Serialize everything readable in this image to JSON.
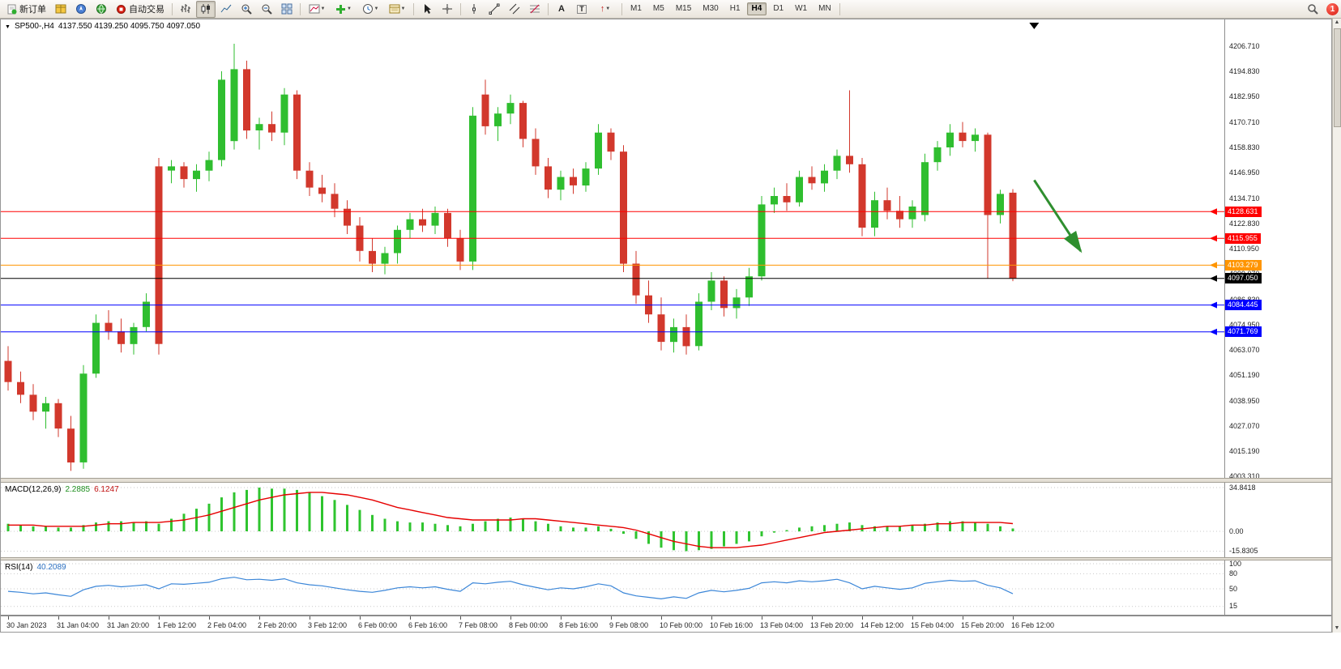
{
  "toolbar": {
    "new_order_label": "新订单",
    "autotrading_label": "自动交易",
    "timeframes": [
      "M1",
      "M5",
      "M15",
      "M30",
      "H1",
      "H4",
      "D1",
      "W1",
      "MN"
    ],
    "active_timeframe": "H4",
    "notification_badge": "1"
  },
  "icons": {
    "dropdown_caret": "▼",
    "collapse_marker": "▼",
    "scroll_up": "▲",
    "scroll_down": "▼",
    "text_tool": "A",
    "label_tool": "T",
    "shapes_tool": "↑"
  },
  "chart": {
    "title_symbol": "SP500-,H4",
    "title_ohlc": "4137.550 4139.250 4095.750 4097.050"
  },
  "chart_data": {
    "type": "candlestick",
    "symbol": "SP500-",
    "timeframe": "H4",
    "title_values": {
      "open": "4137.550",
      "high": "4139.250",
      "low": "4095.750",
      "close": "4097.050"
    },
    "colors": {
      "up": "#2fbe2f",
      "down": "#d2382c",
      "macd_histogram": "#2fc42f",
      "macd_signal": "#e60000",
      "rsi_line": "#3b86d8",
      "arrow": "#2f8f2f"
    },
    "price_axis": {
      "top": 4219.5,
      "bottom": 4002.7,
      "labels": [
        "4206.710",
        "4194.830",
        "4182.950",
        "4170.710",
        "4158.830",
        "4146.950",
        "4134.710",
        "4122.830",
        "4110.950",
        "4099.070",
        "4086.830",
        "4074.950",
        "4063.070",
        "4051.190",
        "4038.950",
        "4027.070",
        "4015.190",
        "4003.310"
      ]
    },
    "time_labels": [
      "30 Jan 2023",
      "31 Jan 04:00",
      "31 Jan 20:00",
      "1 Feb 12:00",
      "2 Feb 04:00",
      "2 Feb 20:00",
      "3 Feb 12:00",
      "6 Feb 00:00",
      "6 Feb 16:00",
      "7 Feb 08:00",
      "8 Feb 00:00",
      "8 Feb 16:00",
      "9 Feb 08:00",
      "10 Feb 00:00",
      "10 Feb 16:00",
      "13 Feb 04:00",
      "13 Feb 20:00",
      "14 Feb 12:00",
      "15 Feb 04:00",
      "15 Feb 20:00",
      "16 Feb 12:00"
    ],
    "candles": [
      [
        4058,
        4065,
        4044,
        4048
      ],
      [
        4048,
        4053,
        4038,
        4042
      ],
      [
        4042,
        4047,
        4030,
        4034
      ],
      [
        4034,
        4041,
        4026,
        4038
      ],
      [
        4038,
        4040,
        4022,
        4026
      ],
      [
        4026,
        4032,
        4006,
        4010
      ],
      [
        4010,
        4056,
        4007,
        4052
      ],
      [
        4052,
        4080,
        4050,
        4076
      ],
      [
        4076,
        4082,
        4068,
        4072
      ],
      [
        4072,
        4078,
        4062,
        4066
      ],
      [
        4066,
        4076,
        4061,
        4074
      ],
      [
        4074,
        4090,
        4072,
        4086
      ],
      [
        4150,
        4154,
        4061,
        4066
      ],
      [
        4148,
        4153,
        4142,
        4150
      ],
      [
        4150,
        4152,
        4140,
        4144
      ],
      [
        4144,
        4151,
        4138,
        4148
      ],
      [
        4148,
        4157,
        4143,
        4153
      ],
      [
        4153,
        4195,
        4150,
        4191
      ],
      [
        4162,
        4208,
        4158,
        4196
      ],
      [
        4196,
        4200,
        4163,
        4167
      ],
      [
        4167,
        4173,
        4158,
        4170
      ],
      [
        4170,
        4176,
        4162,
        4166
      ],
      [
        4166,
        4187,
        4160,
        4184
      ],
      [
        4184,
        4186,
        4144,
        4148
      ],
      [
        4148,
        4152,
        4136,
        4140
      ],
      [
        4140,
        4146,
        4133,
        4137
      ],
      [
        4137,
        4142,
        4126,
        4130
      ],
      [
        4130,
        4134,
        4118,
        4122
      ],
      [
        4122,
        4126,
        4105,
        4110
      ],
      [
        4110,
        4116,
        4100,
        4104
      ],
      [
        4104,
        4112,
        4099,
        4109
      ],
      [
        4109,
        4122,
        4104,
        4120
      ],
      [
        4120,
        4128,
        4116,
        4125
      ],
      [
        4125,
        4130,
        4119,
        4122
      ],
      [
        4122,
        4131,
        4118,
        4128
      ],
      [
        4128,
        4130,
        4112,
        4116
      ],
      [
        4116,
        4120,
        4101,
        4105
      ],
      [
        4105,
        4178,
        4101,
        4174
      ],
      [
        4184,
        4191,
        4165,
        4169
      ],
      [
        4169,
        4178,
        4162,
        4175
      ],
      [
        4175,
        4184,
        4170,
        4180
      ],
      [
        4180,
        4181,
        4159,
        4163
      ],
      [
        4163,
        4168,
        4146,
        4150
      ],
      [
        4150,
        4154,
        4135,
        4139
      ],
      [
        4139,
        4148,
        4134,
        4145
      ],
      [
        4145,
        4149,
        4137,
        4141
      ],
      [
        4141,
        4152,
        4138,
        4149
      ],
      [
        4149,
        4170,
        4146,
        4166
      ],
      [
        4166,
        4168,
        4153,
        4157
      ],
      [
        4157,
        4160,
        4100,
        4104
      ],
      [
        4104,
        4110,
        4085,
        4089
      ],
      [
        4089,
        4096,
        4076,
        4080
      ],
      [
        4080,
        4088,
        4063,
        4067
      ],
      [
        4067,
        4078,
        4062,
        4074
      ],
      [
        4074,
        4080,
        4061,
        4065
      ],
      [
        4065,
        4090,
        4063,
        4086
      ],
      [
        4086,
        4100,
        4082,
        4096
      ],
      [
        4096,
        4098,
        4079,
        4083
      ],
      [
        4083,
        4092,
        4078,
        4088
      ],
      [
        4088,
        4102,
        4084,
        4098
      ],
      [
        4098,
        4136,
        4096,
        4132
      ],
      [
        4132,
        4140,
        4128,
        4136
      ],
      [
        4136,
        4142,
        4129,
        4133
      ],
      [
        4133,
        4148,
        4131,
        4145
      ],
      [
        4145,
        4150,
        4139,
        4142
      ],
      [
        4142,
        4151,
        4138,
        4148
      ],
      [
        4148,
        4158,
        4144,
        4155
      ],
      [
        4155,
        4186,
        4147,
        4151
      ],
      [
        4151,
        4154,
        4117,
        4121
      ],
      [
        4121,
        4138,
        4117,
        4134
      ],
      [
        4134,
        4140,
        4125,
        4129
      ],
      [
        4129,
        4136,
        4121,
        4125
      ],
      [
        4125,
        4134,
        4121,
        4131
      ],
      [
        4127,
        4156,
        4124,
        4152
      ],
      [
        4152,
        4162,
        4148,
        4159
      ],
      [
        4159,
        4170,
        4155,
        4166
      ],
      [
        4166,
        4171,
        4159,
        4162
      ],
      [
        4162,
        4168,
        4157,
        4165
      ],
      [
        4165,
        4166,
        4097,
        4127
      ],
      [
        4127,
        4139,
        4123,
        4137
      ],
      [
        4137.55,
        4139.25,
        4095.75,
        4097.05
      ]
    ],
    "hlines": [
      {
        "price": 4128.631,
        "label": "4128.631",
        "color": "#ff0000"
      },
      {
        "price": 4115.955,
        "label": "4115.955",
        "color": "#ff0000"
      },
      {
        "price": 4103.279,
        "label": "4103.279",
        "color": "#ff9500"
      },
      {
        "price": 4097.05,
        "label": "4097.050",
        "color": "#000000"
      },
      {
        "price": 4084.445,
        "label": "4084.445",
        "color": "#0000ff"
      },
      {
        "price": 4071.769,
        "label": "4071.769",
        "color": "#0000ff"
      }
    ],
    "arrow": {
      "from_bar": 81.7,
      "from_price": 4143.5,
      "to_bar": 85.4,
      "to_price": 4110.0
    },
    "shift_marker_bar": 81.7,
    "macd": {
      "label": "MACD(12,26,9)",
      "value_main": "2.2885",
      "value_signal": "6.1247",
      "axis_labels": [
        "34.8418",
        "0.00",
        "-15.8305"
      ],
      "histogram": [
        6,
        5,
        4,
        4,
        3,
        3,
        5,
        7,
        8,
        8,
        7,
        8,
        6,
        10,
        14,
        18,
        22,
        27,
        31,
        33,
        34.8418,
        34,
        34,
        33,
        31,
        28,
        25,
        21,
        17,
        13,
        10,
        8,
        7,
        7,
        6,
        5,
        4,
        6,
        8,
        10,
        11,
        10,
        8,
        6,
        4,
        3,
        3,
        4,
        2,
        -2,
        -6,
        -10,
        -13,
        -15,
        -15.8305,
        -15,
        -14,
        -12,
        -10,
        -8,
        -4,
        -1,
        1,
        3,
        4,
        5,
        6,
        7,
        5,
        4,
        4,
        4,
        5,
        6,
        7,
        8,
        8,
        7,
        6,
        4,
        2.2885
      ],
      "signal": [
        5,
        5,
        5,
        4,
        4,
        4,
        4,
        5,
        6,
        6,
        7,
        7,
        7,
        8,
        9,
        11,
        13,
        16,
        19,
        22,
        25,
        27,
        29,
        30,
        31,
        31,
        30,
        29,
        27,
        25,
        22,
        19,
        17,
        15,
        13,
        11,
        10,
        9,
        9,
        9,
        9,
        10,
        10,
        9,
        8,
        7,
        6,
        5,
        4,
        3,
        1,
        -2,
        -5,
        -8,
        -10,
        -12,
        -13,
        -13,
        -13,
        -12,
        -11,
        -9,
        -7,
        -5,
        -3,
        -1,
        0,
        1,
        2,
        3,
        4,
        4,
        5,
        5,
        6,
        6,
        7,
        7,
        7,
        7,
        6.1247
      ]
    },
    "rsi": {
      "label": "RSI(14)",
      "value": "40.2089",
      "axis_labels": [
        "100",
        "80",
        "50",
        "15"
      ],
      "values": [
        45,
        43,
        40,
        42,
        38,
        35,
        48,
        55,
        57,
        54,
        56,
        58,
        50,
        60,
        59,
        61,
        63,
        70,
        73,
        68,
        69,
        67,
        70,
        62,
        58,
        56,
        52,
        48,
        45,
        43,
        47,
        52,
        54,
        52,
        54,
        49,
        45,
        62,
        60,
        63,
        65,
        58,
        53,
        48,
        52,
        50,
        54,
        60,
        56,
        42,
        36,
        33,
        30,
        34,
        31,
        42,
        47,
        44,
        47,
        51,
        62,
        64,
        62,
        66,
        64,
        66,
        69,
        62,
        50,
        55,
        52,
        49,
        52,
        61,
        64,
        67,
        65,
        66,
        57,
        52,
        40.2089
      ]
    }
  }
}
